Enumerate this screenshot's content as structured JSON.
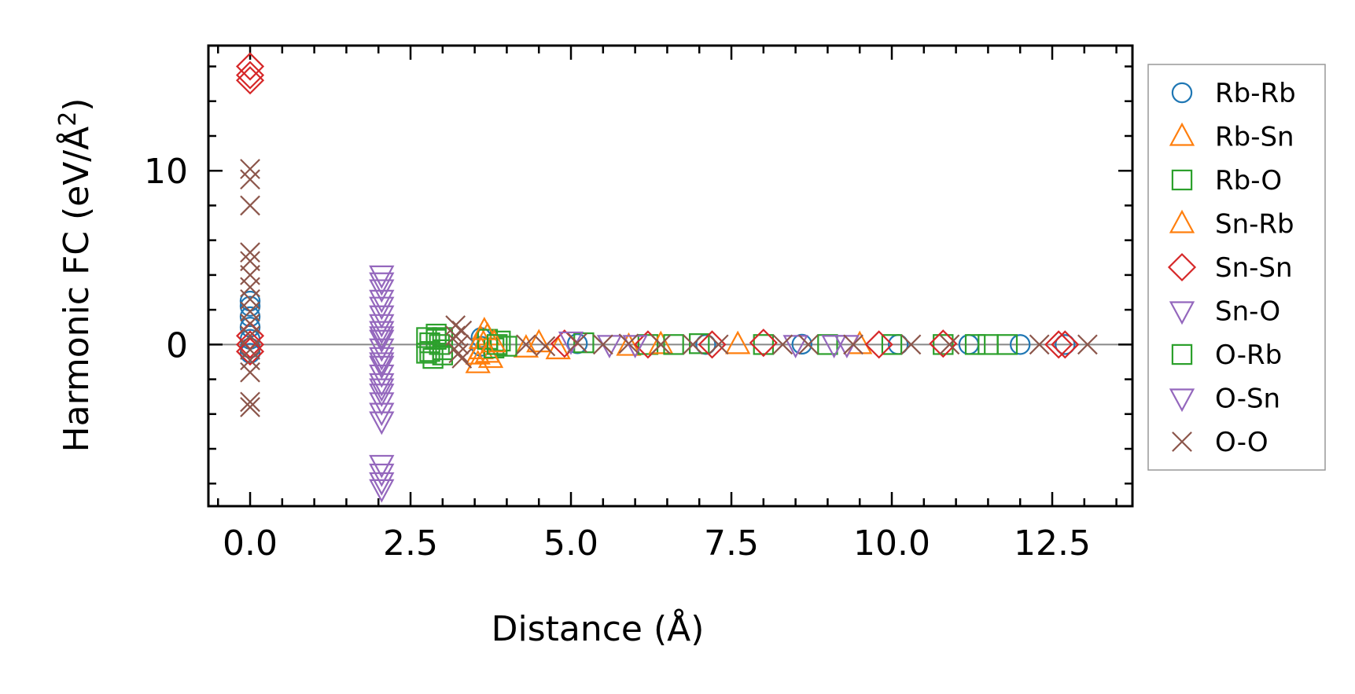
{
  "chart_data": {
    "type": "scatter",
    "xlabel": "Distance (Å)",
    "ylabel_main": "Harmonic FC (eV/Å",
    "ylabel_sup": "2",
    "ylabel_close": ")",
    "xlim": [
      -0.65,
      13.75
    ],
    "ylim": [
      -9.3,
      17.2
    ],
    "xticks": [
      0.0,
      2.5,
      5.0,
      7.5,
      10.0,
      12.5
    ],
    "xtick_labels": [
      "0.0",
      "2.5",
      "5.0",
      "7.5",
      "10.0",
      "12.5"
    ],
    "yticks": [
      0,
      10
    ],
    "ytick_labels": [
      "0",
      "10"
    ],
    "zero_line": 0,
    "legend_position": "outside-right",
    "series": [
      {
        "name": "Rb-Rb",
        "marker": "circle",
        "color": "#1f77b4",
        "points": [
          [
            0,
            2.5
          ],
          [
            0,
            2.2
          ],
          [
            0,
            1.6
          ],
          [
            0,
            1.0
          ],
          [
            0,
            0.3
          ],
          [
            0,
            -0.2
          ],
          [
            0,
            -0.5
          ],
          [
            3.6,
            0.4
          ],
          [
            3.6,
            -0.1
          ],
          [
            5.1,
            0.05
          ],
          [
            7.1,
            0.0
          ],
          [
            8.6,
            0.02
          ],
          [
            10.1,
            0.0
          ],
          [
            11.2,
            0.0
          ],
          [
            12.0,
            0.0
          ],
          [
            12.7,
            0.0
          ]
        ]
      },
      {
        "name": "Rb-Sn",
        "marker": "triangle-up",
        "color": "#ff7f0e",
        "points": [
          [
            3.55,
            -0.6
          ],
          [
            3.55,
            -1.1
          ],
          [
            3.6,
            0.3
          ],
          [
            3.6,
            -0.3
          ],
          [
            3.7,
            0.5
          ],
          [
            3.75,
            -0.8
          ],
          [
            4.3,
            -0.2
          ],
          [
            4.8,
            -0.3
          ],
          [
            5.9,
            -0.1
          ],
          [
            7.6,
            0.0
          ],
          [
            9.5,
            0.0
          ]
        ]
      },
      {
        "name": "Rb-O",
        "marker": "square",
        "color": "#2ca02c",
        "points": [
          [
            2.75,
            0.4
          ],
          [
            2.75,
            -0.5
          ],
          [
            2.8,
            0.1
          ],
          [
            2.85,
            -0.8
          ],
          [
            2.9,
            0.6
          ],
          [
            2.95,
            0.0
          ],
          [
            3.0,
            -0.3
          ],
          [
            3.0,
            0.4
          ],
          [
            3.7,
            0.3
          ],
          [
            3.8,
            -0.2
          ],
          [
            3.9,
            0.2
          ],
          [
            4.0,
            -0.1
          ],
          [
            5.2,
            0.1
          ],
          [
            6.2,
            0.0
          ],
          [
            7.0,
            0.05
          ],
          [
            8.0,
            0.0
          ],
          [
            9.0,
            0.0
          ],
          [
            10.0,
            0.0
          ],
          [
            10.8,
            0.0
          ],
          [
            11.5,
            0.0
          ],
          [
            11.8,
            0.0
          ]
        ]
      },
      {
        "name": "Sn-Rb",
        "marker": "triangle-up",
        "color": "#ff7f0e",
        "points": [
          [
            3.65,
            0.8
          ],
          [
            3.7,
            -0.5
          ],
          [
            3.8,
            0.1
          ],
          [
            4.5,
            0.1
          ],
          [
            6.4,
            0.0
          ]
        ]
      },
      {
        "name": "Sn-Sn",
        "marker": "diamond",
        "color": "#d62728",
        "points": [
          [
            0,
            16.0
          ],
          [
            0,
            15.5
          ],
          [
            0,
            15.2
          ],
          [
            0,
            0.5
          ],
          [
            0,
            0.0
          ],
          [
            0,
            -0.4
          ],
          [
            4.9,
            0.05
          ],
          [
            6.2,
            0.0
          ],
          [
            7.2,
            0.0
          ],
          [
            8.0,
            0.1
          ],
          [
            9.8,
            0.0
          ],
          [
            10.8,
            0.05
          ],
          [
            12.6,
            0.0
          ],
          [
            12.7,
            0.0
          ]
        ]
      },
      {
        "name": "Sn-O",
        "marker": "triangle-down",
        "color": "#9467bd",
        "points": [
          [
            2.05,
            4.0
          ],
          [
            2.05,
            3.6
          ],
          [
            2.05,
            3.2
          ],
          [
            2.05,
            2.6
          ],
          [
            2.05,
            2.2
          ],
          [
            2.05,
            1.7
          ],
          [
            2.05,
            1.2
          ],
          [
            2.05,
            0.8
          ],
          [
            2.05,
            0.3
          ],
          [
            2.05,
            -0.2
          ],
          [
            2.05,
            -0.7
          ],
          [
            2.05,
            -1.2
          ],
          [
            2.05,
            -1.7
          ],
          [
            2.05,
            -2.2
          ],
          [
            2.05,
            -2.8
          ],
          [
            2.05,
            -3.3
          ],
          [
            2.05,
            -3.9
          ],
          [
            2.05,
            -4.4
          ],
          [
            2.05,
            -6.9
          ],
          [
            2.05,
            -7.4
          ],
          [
            2.05,
            -7.9
          ],
          [
            2.05,
            -8.3
          ],
          [
            5.0,
            0.2
          ],
          [
            6.0,
            0.0
          ],
          [
            8.5,
            0.0
          ],
          [
            9.3,
            0.0
          ]
        ]
      },
      {
        "name": "O-Rb",
        "marker": "square",
        "color": "#2ca02c",
        "points": [
          [
            2.8,
            -0.4
          ],
          [
            2.9,
            0.3
          ],
          [
            3.0,
            -0.6
          ],
          [
            3.85,
            0.0
          ],
          [
            6.6,
            0.0
          ],
          [
            11.3,
            0.0
          ]
        ]
      },
      {
        "name": "O-Sn",
        "marker": "triangle-down",
        "color": "#9467bd",
        "points": [
          [
            2.05,
            0.5
          ],
          [
            2.05,
            -1.0
          ],
          [
            2.05,
            -2.5
          ],
          [
            5.6,
            0.0
          ],
          [
            9.1,
            0.0
          ]
        ]
      },
      {
        "name": "O-O",
        "marker": "x",
        "color": "#8c564b",
        "points": [
          [
            0,
            10.1
          ],
          [
            0,
            9.5
          ],
          [
            0,
            8.0
          ],
          [
            0,
            5.3
          ],
          [
            0,
            4.8
          ],
          [
            0,
            4.0
          ],
          [
            0,
            3.3
          ],
          [
            0,
            2.6
          ],
          [
            0,
            1.9
          ],
          [
            0,
            1.2
          ],
          [
            0,
            0.5
          ],
          [
            0,
            -0.3
          ],
          [
            0,
            -0.9
          ],
          [
            0,
            -1.6
          ],
          [
            0,
            -3.3
          ],
          [
            0,
            -3.6
          ],
          [
            3.2,
            1.1
          ],
          [
            3.2,
            0.5
          ],
          [
            3.25,
            0.0
          ],
          [
            3.25,
            -0.5
          ],
          [
            3.3,
            -0.8
          ],
          [
            3.3,
            0.8
          ],
          [
            4.3,
            0.0
          ],
          [
            4.6,
            -0.1
          ],
          [
            5.1,
            0.1
          ],
          [
            5.5,
            0.0
          ],
          [
            5.9,
            0.05
          ],
          [
            6.4,
            0.0
          ],
          [
            6.9,
            0.0
          ],
          [
            7.3,
            0.0
          ],
          [
            8.3,
            0.0
          ],
          [
            8.7,
            0.0
          ],
          [
            9.4,
            0.0
          ],
          [
            10.3,
            0.0
          ],
          [
            10.9,
            0.0
          ],
          [
            12.3,
            0.0
          ],
          [
            13.05,
            0.0
          ]
        ]
      }
    ]
  }
}
